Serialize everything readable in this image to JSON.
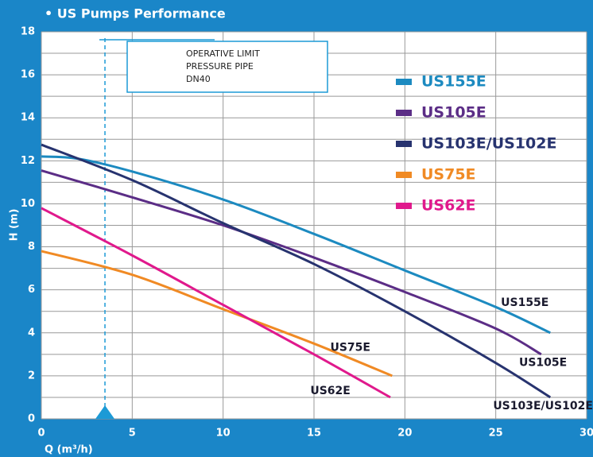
{
  "chart_data": {
    "type": "line",
    "title": "• US Pumps Performance",
    "x_label": "Q (m³/h)",
    "y_label": "H (m)",
    "xlim": [
      0,
      30
    ],
    "ylim": [
      0,
      18
    ],
    "xticks": [
      0,
      5,
      10,
      15,
      20,
      25,
      30
    ],
    "yticks": [
      0,
      2,
      4,
      6,
      8,
      10,
      12,
      14,
      16,
      18
    ],
    "yminor": [
      1,
      3,
      5,
      7,
      9,
      11,
      13,
      15,
      17
    ],
    "grid": true,
    "background": "#1a86c8",
    "series": [
      {
        "name": "US155E",
        "color": "#1c8ac0",
        "x": [
          0,
          2,
          5,
          10,
          15,
          20,
          25,
          28
        ],
        "values": [
          12.2,
          12.1,
          11.5,
          10.2,
          8.6,
          6.9,
          5.2,
          4.0
        ],
        "label_at": [
          26.6,
          5.4
        ]
      },
      {
        "name": "US105E",
        "color": "#5b2d86",
        "x": [
          0,
          5,
          10,
          15,
          20,
          25,
          27.5
        ],
        "values": [
          11.55,
          10.3,
          9.0,
          7.5,
          5.9,
          4.2,
          3.0
        ],
        "label_at": [
          27.6,
          2.6
        ]
      },
      {
        "name": "US103E/US102E",
        "color": "#27336f",
        "x": [
          0,
          5,
          10,
          15,
          20,
          25,
          28
        ],
        "values": [
          12.75,
          11.1,
          9.1,
          7.2,
          5.0,
          2.6,
          1.0
        ],
        "label_at": [
          27.6,
          0.6
        ]
      },
      {
        "name": "US75E",
        "color": "#f08a24",
        "x": [
          0,
          5,
          10,
          15,
          19.3
        ],
        "values": [
          7.8,
          6.7,
          5.1,
          3.5,
          2.0
        ],
        "label_at": [
          17.0,
          3.3
        ]
      },
      {
        "name": "US62E",
        "color": "#e0198c",
        "x": [
          0,
          5,
          10,
          15,
          19.2
        ],
        "values": [
          9.8,
          7.6,
          5.3,
          3.0,
          1.0
        ],
        "label_at": [
          15.9,
          1.3
        ]
      }
    ],
    "annotation": {
      "x": 3.5,
      "lines": [
        "OPERATIVE LIMIT",
        "PRESSURE PIPE",
        "DN40"
      ]
    }
  }
}
